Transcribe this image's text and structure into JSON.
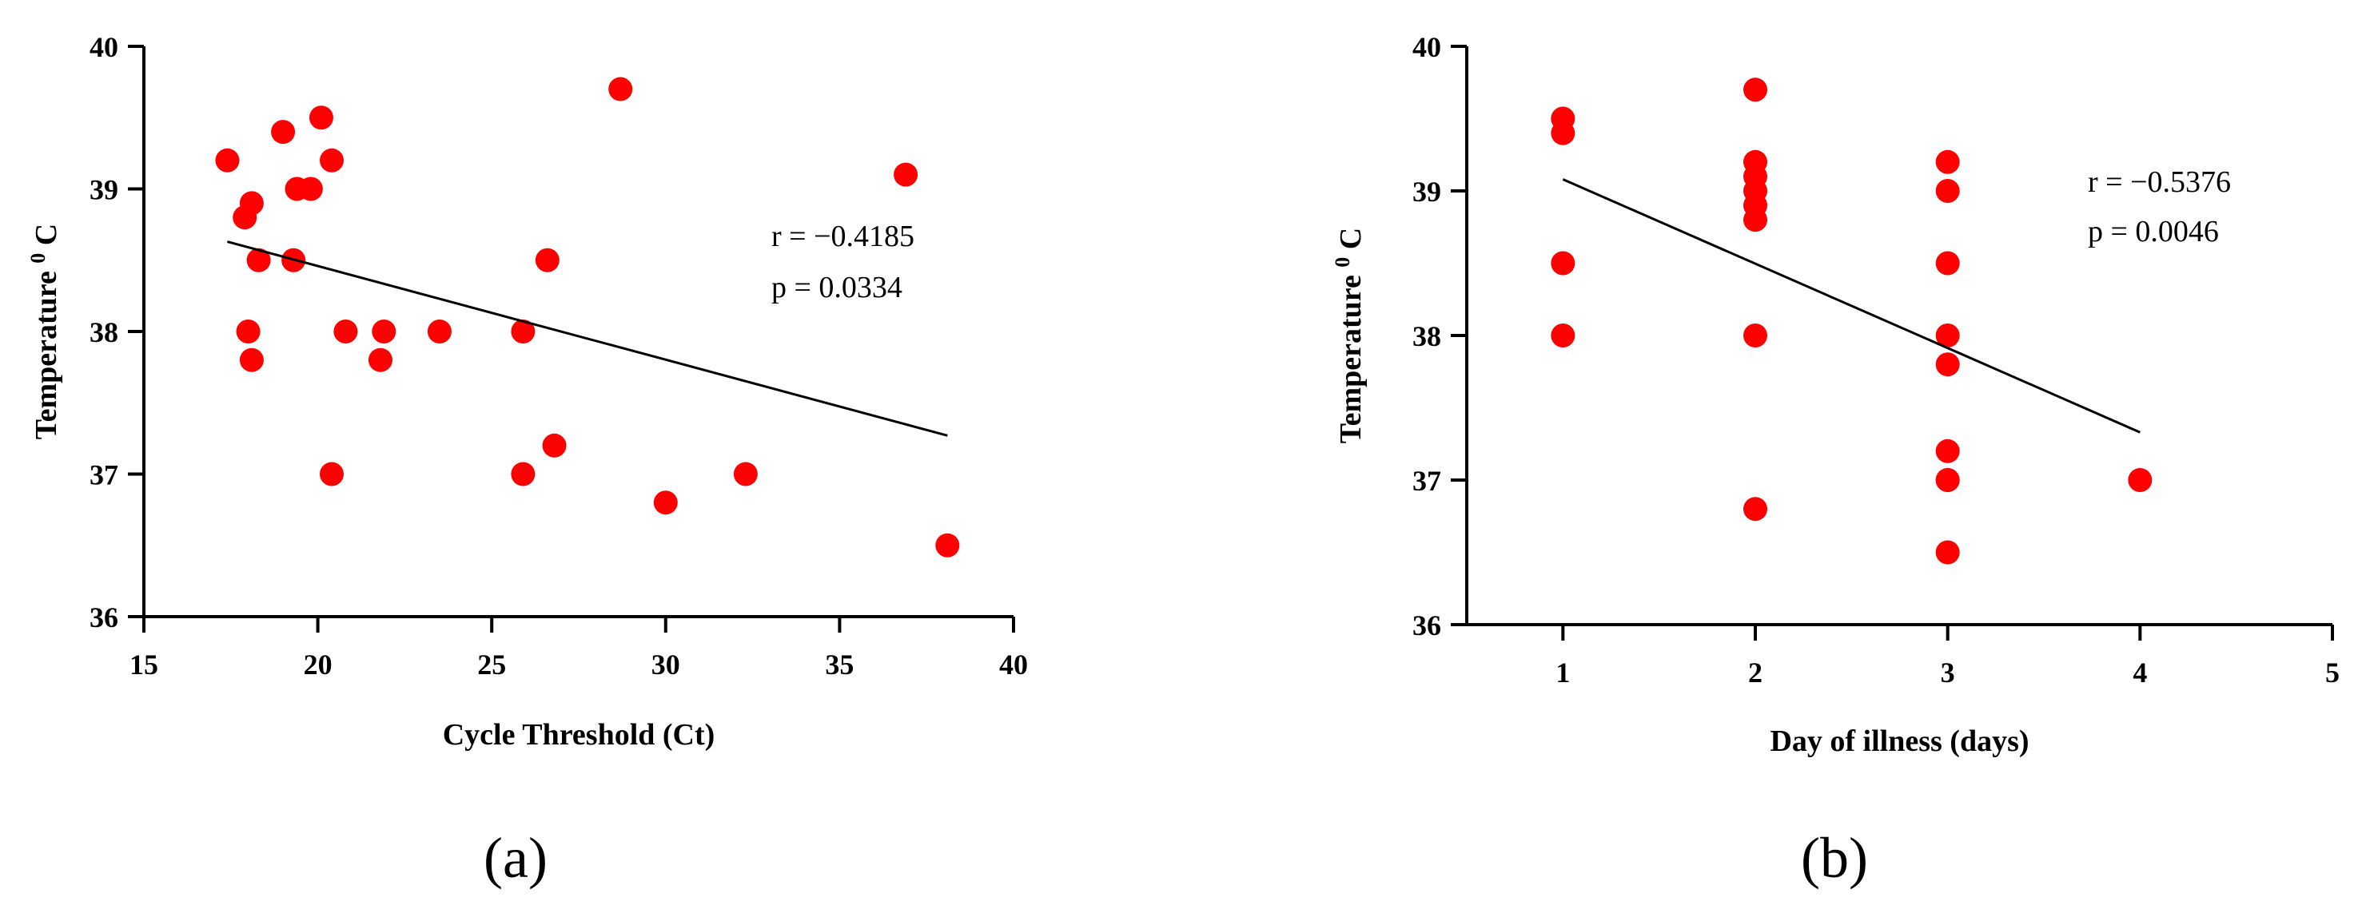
{
  "chart_data": [
    {
      "type": "scatter",
      "panel_label": "(a)",
      "panel_letter": "a",
      "xlabel": "Cycle Threshold (Ct)",
      "ylabel": "Temperature",
      "ylabel_sup": "0",
      "ylabel_unit": "C",
      "xlim": [
        15,
        40
      ],
      "ylim": [
        36,
        40
      ],
      "xticks": [
        "15",
        "20",
        "25",
        "30",
        "35",
        "40"
      ],
      "yticks": [
        "36",
        "37",
        "38",
        "39",
        "40"
      ],
      "annotation": {
        "r": "r = −0.4185",
        "p": "p = 0.0334"
      },
      "point_color": "#ff0000",
      "x": [
        17.4,
        17.9,
        18.1,
        18.0,
        18.1,
        18.3,
        19.0,
        19.4,
        19.3,
        19.8,
        20.1,
        20.4,
        20.4,
        20.8,
        21.8,
        21.9,
        23.5,
        25.9,
        25.9,
        26.6,
        26.8,
        28.7,
        30.0,
        32.3,
        36.9,
        38.1
      ],
      "y": [
        39.2,
        38.8,
        38.9,
        38.0,
        37.8,
        38.5,
        39.4,
        39.0,
        38.5,
        39.0,
        39.5,
        39.2,
        37.0,
        38.0,
        37.8,
        38.0,
        38.0,
        37.0,
        38.0,
        38.5,
        37.2,
        39.7,
        36.8,
        37.0,
        39.1,
        36.5
      ],
      "trendline": {
        "x": [
          17.4,
          38.1
        ],
        "y": [
          38.63,
          37.27
        ]
      }
    },
    {
      "type": "scatter",
      "panel_label": "(b)",
      "panel_letter": "b",
      "xlabel": "Day of illness (days)",
      "ylabel": "Temperature",
      "ylabel_sup": "0",
      "ylabel_unit": "C",
      "xlim": [
        0.5,
        5
      ],
      "ylim": [
        36,
        40
      ],
      "xticks": [
        "1",
        "2",
        "3",
        "4",
        "5"
      ],
      "yticks": [
        "36",
        "37",
        "38",
        "39",
        "40"
      ],
      "annotation": {
        "r": "r = −0.5376",
        "p": "p = 0.0046"
      },
      "point_color": "#ff0000",
      "x": [
        1,
        1,
        1,
        1,
        2,
        2,
        2,
        2,
        2,
        2,
        2,
        2,
        3,
        3,
        3,
        3,
        3,
        3,
        3,
        3,
        3,
        4
      ],
      "y": [
        39.5,
        39.4,
        38.5,
        38.0,
        39.7,
        39.2,
        39.1,
        39.0,
        38.9,
        38.8,
        38.0,
        36.8,
        39.2,
        39.0,
        38.5,
        38.0,
        37.8,
        37.2,
        37.0,
        36.5,
        37.0,
        37.0
      ],
      "trendline": {
        "x": [
          1,
          4
        ],
        "y": [
          39.08,
          37.33
        ]
      }
    }
  ]
}
